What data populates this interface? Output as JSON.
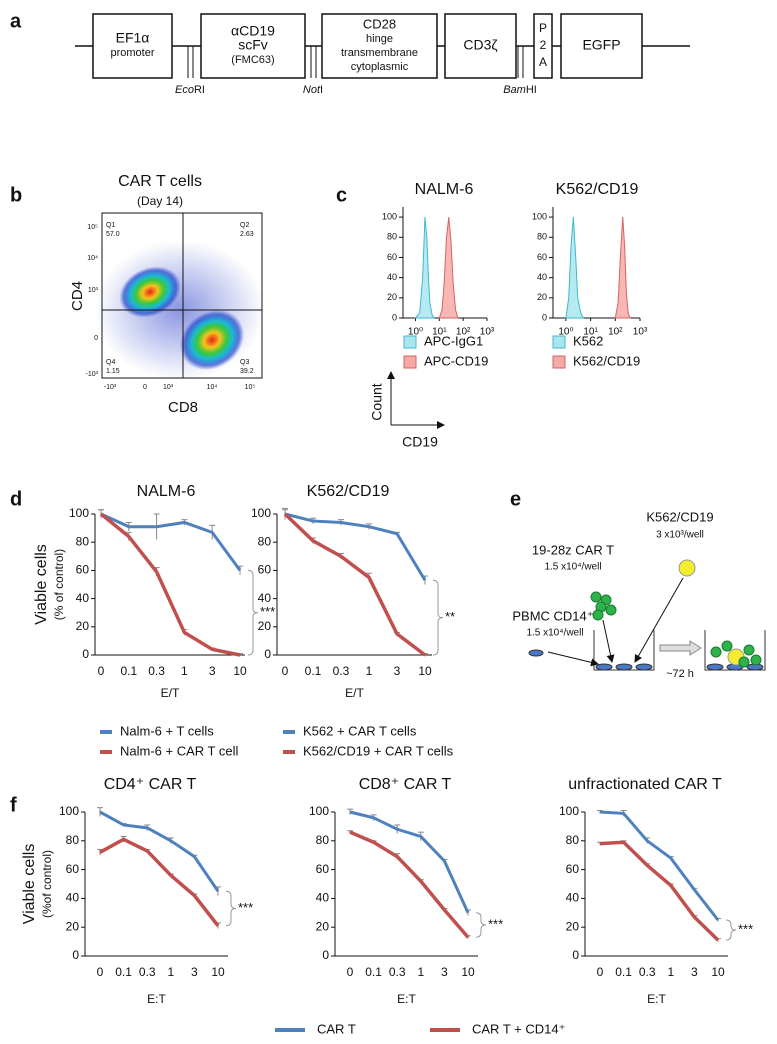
{
  "panel_labels": [
    "a",
    "b",
    "c",
    "d",
    "e",
    "f"
  ],
  "panel_a": {
    "elements": [
      {
        "lines": [
          "EF1α",
          "promoter"
        ]
      },
      {
        "lines": [
          "αCD19",
          "scFv",
          "(FMC63)"
        ]
      },
      {
        "lines": [
          "CD28",
          "hinge",
          "transmembrane",
          "cytoplasmic"
        ]
      },
      {
        "lines": [
          "CD3ζ"
        ]
      },
      {
        "lines": [
          "P",
          "2",
          "A"
        ]
      },
      {
        "lines": [
          "EGFP"
        ]
      }
    ],
    "sites": [
      {
        "italic": "Eco",
        "text": "RI"
      },
      {
        "italic": "Not",
        "text": "I"
      },
      {
        "italic": "Bam",
        "text": "HI"
      }
    ]
  },
  "panel_b": {
    "title": "CAR T cells",
    "subtitle": "(Day 14)",
    "xlabel": "CD8",
    "ylabel": "CD4",
    "yticks": [
      "10⁵",
      "10⁴",
      "10³",
      "0",
      "-10³"
    ],
    "xticks": [
      "-10³",
      "0",
      "10³",
      "10⁴",
      "10⁵"
    ],
    "quadrants": [
      {
        "name": "Q1",
        "value": "57.0"
      },
      {
        "name": "Q2",
        "value": "2.63"
      },
      {
        "name": "Q3",
        "value": "39.2"
      },
      {
        "name": "Q4",
        "value": "1.15"
      }
    ]
  },
  "panel_c": {
    "axis_labels": [
      "Count",
      "CD19"
    ]
  },
  "panel_e": {
    "target": [
      "K562/CD19",
      "3 x10³/well"
    ],
    "car_t": [
      "19-28z CAR T",
      "1.5 x10⁴/well"
    ],
    "pbmc": [
      "PBMC CD14⁺",
      "1.5 x10⁴/well"
    ],
    "time": "~72 h"
  },
  "chart_data": [
    {
      "type": "line",
      "title": "NALM-6",
      "ylabel": [
        "Viable cells",
        "(% of control)"
      ],
      "xlabel": "E/T",
      "categories": [
        "0",
        "0.1",
        "0.3",
        "1",
        "3",
        "10"
      ],
      "ylim": [
        0,
        100
      ],
      "yticks": [
        0,
        20,
        40,
        60,
        80,
        100
      ],
      "annotation": "***",
      "series": [
        {
          "name": "Nalm-6 + T cells",
          "color": "#4f81bd",
          "values": [
            100,
            91,
            91,
            94,
            87,
            60
          ],
          "errors": [
            3,
            3,
            9,
            2,
            5,
            3
          ]
        },
        {
          "name": "Nalm-6 + CAR T cell",
          "color": "#c0504d",
          "values": [
            100,
            84,
            59,
            16,
            4,
            0
          ],
          "errors": [
            3,
            3,
            3,
            2,
            1,
            1
          ]
        }
      ]
    },
    {
      "type": "line",
      "title": "K562/CD19",
      "xlabel": "E/T",
      "categories": [
        "0",
        "0.1",
        "0.3",
        "1",
        "3",
        "10"
      ],
      "ylim": [
        0,
        100
      ],
      "yticks": [
        0,
        20,
        40,
        60,
        80,
        100
      ],
      "annotation": "**",
      "series": [
        {
          "name": "K562 + CAR T cells",
          "color": "#4f81bd",
          "values": [
            100,
            95,
            94,
            91,
            86,
            53
          ],
          "errors": [
            4,
            2,
            2,
            2,
            1,
            3
          ]
        },
        {
          "name": "K562/CD19 + CAR T cells",
          "color": "#c0504d",
          "values": [
            100,
            81,
            70,
            55,
            15,
            0
          ],
          "errors": [
            3,
            2,
            2,
            3,
            1,
            1
          ]
        }
      ]
    },
    {
      "type": "line",
      "title": "CD4⁺ CAR T",
      "ylabel": [
        "Viable cells",
        "(%of control)"
      ],
      "xlabel": "E:T",
      "categories": [
        "0",
        "0.1",
        "0.3",
        "1",
        "3",
        "10"
      ],
      "ylim": [
        0,
        100
      ],
      "yticks": [
        0,
        20,
        40,
        60,
        80,
        100
      ],
      "annotation": "***",
      "series": [
        {
          "name": "CAR T",
          "color": "#4f81bd",
          "values": [
            100,
            91,
            89,
            80,
            69,
            45
          ],
          "errors": [
            3,
            1,
            2,
            2,
            1,
            3
          ]
        },
        {
          "name": "CAR T + CD14⁺",
          "color": "#c0504d",
          "values": [
            72,
            81,
            73,
            56,
            42,
            21
          ],
          "errors": [
            2,
            2,
            1,
            1,
            1,
            2
          ]
        }
      ]
    },
    {
      "type": "line",
      "title": "CD8⁺ CAR T",
      "xlabel": "E:T",
      "categories": [
        "0",
        "0.1",
        "0.3",
        "1",
        "3",
        "10"
      ],
      "ylim": [
        0,
        100
      ],
      "yticks": [
        0,
        20,
        40,
        60,
        80,
        100
      ],
      "annotation": "***",
      "series": [
        {
          "color": "#4f81bd",
          "values": [
            100,
            96,
            88,
            83,
            66,
            30
          ],
          "errors": [
            2,
            2,
            3,
            3,
            1,
            2
          ]
        },
        {
          "color": "#c0504d",
          "values": [
            86,
            79,
            69,
            52,
            32,
            13
          ],
          "errors": [
            1,
            1,
            2,
            1,
            1,
            1
          ]
        }
      ]
    },
    {
      "type": "line",
      "title": "unfractionated CAR T",
      "xlabel": "E:T",
      "categories": [
        "0",
        "0.1",
        "0.3",
        "1",
        "3",
        "10"
      ],
      "ylim": [
        0,
        100
      ],
      "yticks": [
        0,
        20,
        40,
        60,
        80,
        100
      ],
      "annotation": "***",
      "series": [
        {
          "color": "#4f81bd",
          "values": [
            100,
            99,
            80,
            68,
            46,
            25
          ],
          "errors": [
            1,
            2,
            2,
            1,
            1,
            1
          ]
        },
        {
          "color": "#c0504d",
          "values": [
            78,
            79,
            63,
            49,
            27,
            11
          ],
          "errors": [
            1,
            1,
            1,
            1,
            1,
            1
          ]
        }
      ]
    },
    {
      "type": "area",
      "title": "NALM-6",
      "xscale": "log",
      "xlim": [
        0.3,
        1000
      ],
      "xticks": [
        {
          "value": 1,
          "label": "10⁰"
        },
        {
          "value": 10,
          "label": "10¹"
        },
        {
          "value": 100,
          "label": "10²"
        },
        {
          "value": 1000,
          "label": "10³"
        }
      ],
      "ylim": [
        0,
        110
      ],
      "yticks": [
        0,
        20,
        40,
        60,
        80,
        100
      ],
      "series": [
        {
          "name": "APC-IgG1",
          "color": "#a8e6ef",
          "edgecolor": "#3fb8cc",
          "x": [
            1,
            1.5,
            2,
            2.5,
            3,
            3.5,
            4,
            5,
            6
          ],
          "values": [
            0,
            5,
            40,
            100,
            80,
            40,
            15,
            3,
            0
          ]
        },
        {
          "name": "APC-CD19",
          "color": "#f4aaa8",
          "edgecolor": "#d9625e",
          "x": [
            10,
            13,
            16,
            20,
            25,
            31,
            38,
            48,
            60
          ],
          "values": [
            0,
            8,
            35,
            80,
            100,
            75,
            35,
            8,
            0
          ]
        }
      ]
    },
    {
      "type": "area",
      "title": "K562/CD19",
      "xscale": "log",
      "xlim": [
        0.3,
        1000
      ],
      "xticks": [
        {
          "value": 1,
          "label": "10⁰"
        },
        {
          "value": 10,
          "label": "10¹"
        },
        {
          "value": 100,
          "label": "10²"
        },
        {
          "value": 1000,
          "label": "10³"
        }
      ],
      "ylim": [
        0,
        110
      ],
      "yticks": [
        0,
        20,
        40,
        60,
        80,
        100
      ],
      "series": [
        {
          "name": "K562",
          "color": "#a8e6ef",
          "edgecolor": "#3fb8cc",
          "x": [
            1,
            1.3,
            1.6,
            2,
            2.5,
            3,
            4,
            5
          ],
          "values": [
            0,
            20,
            70,
            100,
            60,
            20,
            5,
            0
          ]
        },
        {
          "name": "K562/CD19",
          "color": "#f4aaa8",
          "edgecolor": "#d9625e",
          "x": [
            100,
            130,
            160,
            200,
            240,
            280,
            330,
            400
          ],
          "values": [
            0,
            15,
            60,
            100,
            70,
            25,
            5,
            0
          ]
        }
      ]
    }
  ]
}
